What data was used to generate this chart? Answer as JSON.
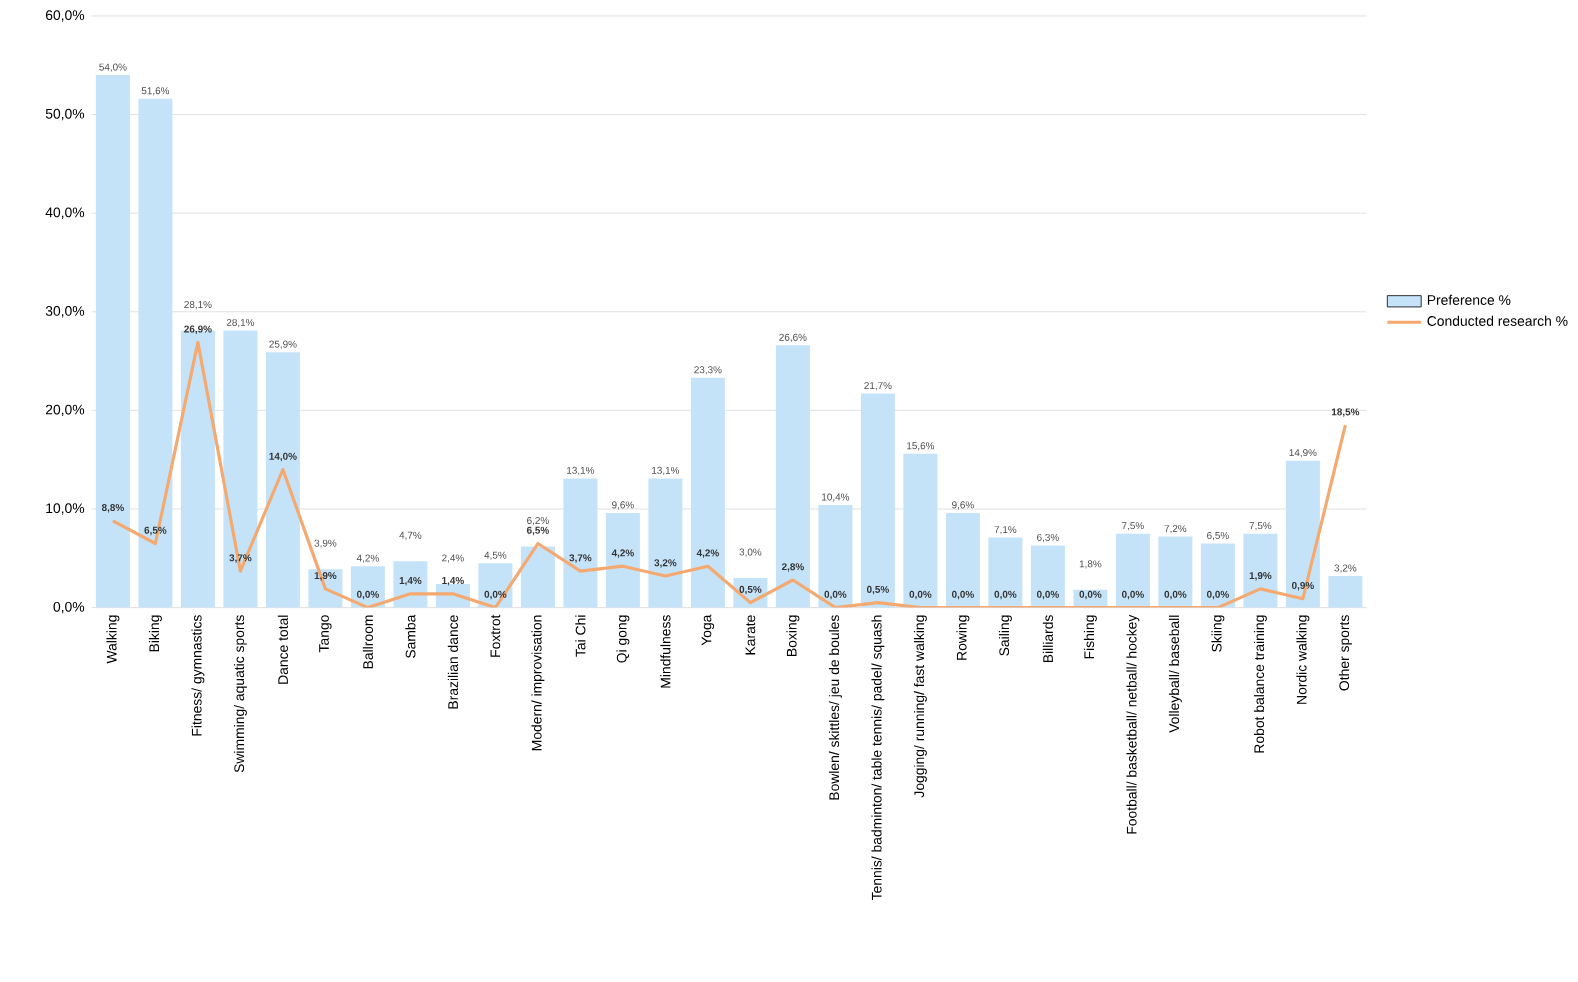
{
  "chart_data": {
    "type": "bar",
    "categories": [
      "Walking",
      "Biking",
      "Fitness/ gymnastics",
      "Swimming/ aquatic sports",
      "Dance total",
      "Tango",
      "Ballroom",
      "Samba",
      "Brazilian dance",
      "Foxtrot",
      "Modern/ improvisation",
      "Tai Chi",
      "Qi gong",
      "Mindfulness",
      "Yoga",
      "Karate",
      "Boxing",
      "Bowlen/ skittles/ jeu de boules",
      "Tennis/ badminton/ table tennis/ padel/ squash",
      "Jogging/ running/ fast walking",
      "Rowing",
      "Sailing",
      "Billiards",
      "Fishing",
      "Football/ basketball/ netball/ hockey",
      "Volleyball/ baseball",
      "Skiing",
      "Robot balance training",
      "Nordic walking",
      "Other sports"
    ],
    "series": [
      {
        "name": "Preference %",
        "color": "#c5e3f8",
        "values": [
          54.0,
          51.6,
          28.1,
          28.1,
          25.9,
          3.9,
          4.2,
          4.7,
          2.4,
          4.5,
          6.2,
          13.1,
          9.6,
          13.1,
          23.3,
          3.0,
          26.6,
          10.4,
          21.7,
          15.6,
          9.6,
          7.1,
          6.3,
          1.8,
          7.5,
          7.2,
          6.5,
          7.5,
          14.9,
          3.2
        ],
        "value_labels": [
          "54,0%",
          "51,6%",
          "28,1%",
          "28,1%",
          "25,9%",
          "3,9%",
          "4,2%",
          "4,7%",
          "2,4%",
          "4,5%",
          "6,2%",
          "13,1%",
          "9,6%",
          "13,1%",
          "23,3%",
          "3,0%",
          "26,6%",
          "10,4%",
          "21,7%",
          "15,6%",
          "9,6%",
          "7,1%",
          "6,3%",
          "1,8%",
          "7,5%",
          "7,2%",
          "6,5%",
          "7,5%",
          "14,9%",
          "3,2%"
        ]
      },
      {
        "name": "Conducted research %",
        "type": "line",
        "color": "#f4a971",
        "values": [
          8.8,
          6.5,
          26.9,
          3.7,
          14.0,
          1.9,
          0.0,
          1.4,
          1.4,
          0.0,
          6.5,
          3.7,
          4.2,
          3.2,
          4.2,
          0.5,
          2.8,
          0.0,
          0.5,
          0.0,
          0.0,
          0.0,
          0.0,
          0.0,
          0.0,
          0.0,
          0.0,
          1.9,
          0.9,
          18.5
        ],
        "value_labels": [
          "8,8%",
          "6,5%",
          "26,9%",
          "3,7%",
          "14,0%",
          "1,9%",
          "0,0%",
          "1,4%",
          "1,4%",
          "0,0%",
          "6,5%",
          "3,7%",
          "4,2%",
          "3,2%",
          "4,2%",
          "0,5%",
          "2,8%",
          "0,0%",
          "0,5%",
          "0,0%",
          "0,0%",
          "0,0%",
          "0,0%",
          "0,0%",
          "0,0%",
          "0,0%",
          "0,0%",
          "1,9%",
          "0,9%",
          "18,5%"
        ]
      }
    ],
    "ylim": [
      0,
      60
    ],
    "yticks": [
      {
        "value": 0,
        "label": "0,0%"
      },
      {
        "value": 10,
        "label": "10,0%"
      },
      {
        "value": 20,
        "label": "20,0%"
      },
      {
        "value": 30,
        "label": "30,0%"
      },
      {
        "value": 40,
        "label": "40,0%"
      },
      {
        "value": 50,
        "label": "50,0%"
      },
      {
        "value": 60,
        "label": "60,0%"
      }
    ],
    "grid": "y",
    "legend": "right"
  }
}
